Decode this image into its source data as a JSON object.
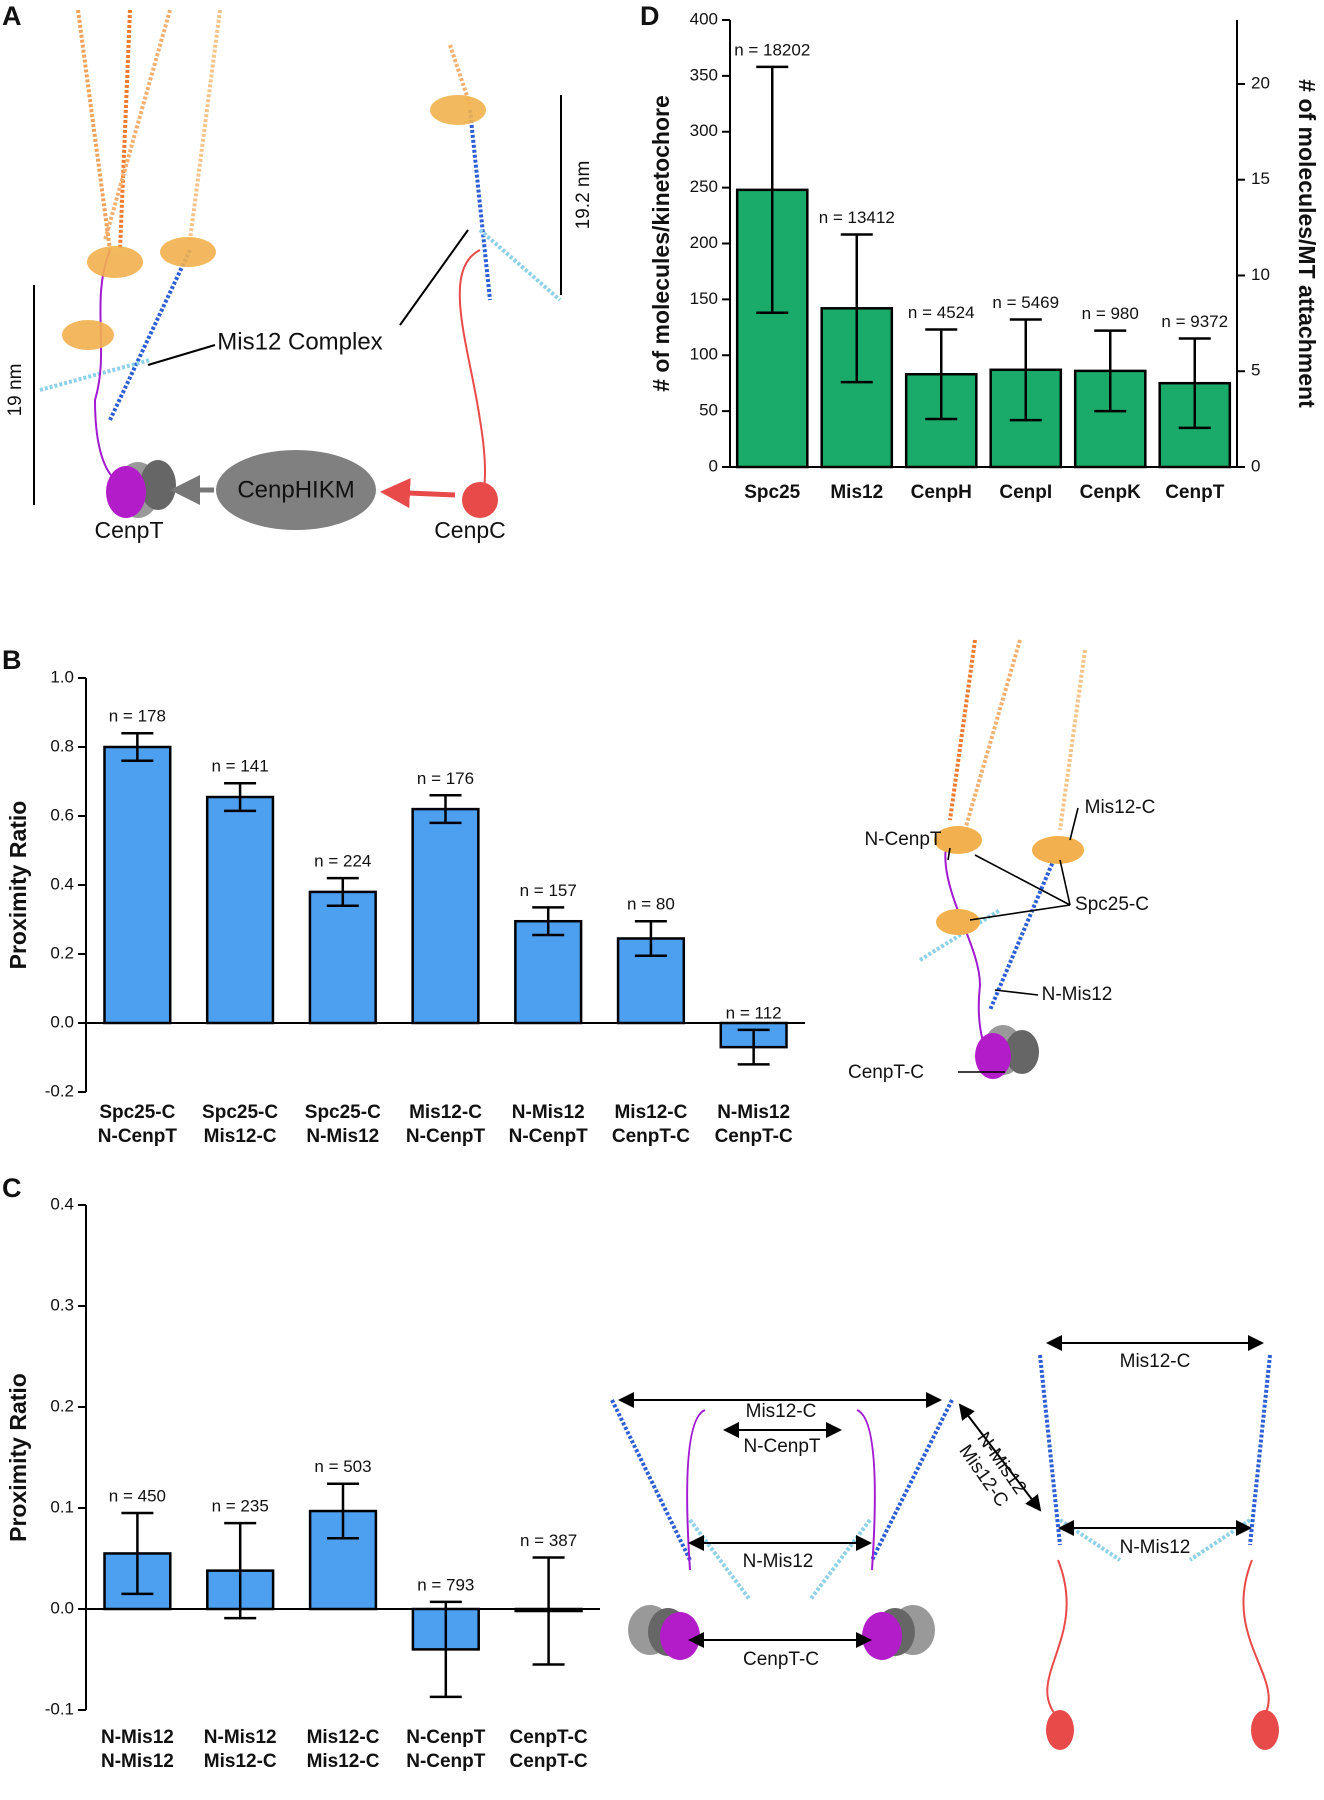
{
  "panel_labels": [
    "A",
    "B",
    "C",
    "D"
  ],
  "diagram_a": {
    "complex_label": "Mis12 Complex",
    "left_scale": "19 nm",
    "right_scale": "19.2 nm",
    "center": "CenpHIKM",
    "left_bottom": "CenpT",
    "right_bottom": "CenpC"
  },
  "diagram_b": {
    "labels": [
      "Mis12-C",
      "N-CenpT",
      "Spc25-C",
      "N-Mis12",
      "CenpT-C"
    ]
  },
  "diagram_c": {
    "left": [
      "Mis12-C",
      "N-CenpT",
      "N-Mis12",
      "CenpT-C"
    ],
    "right": [
      "Mis12-C",
      "N-Mis12"
    ],
    "between": [
      "N-Mis12",
      "Mis12-C"
    ]
  },
  "chart_data": [
    {
      "type": "bar",
      "y_label": "# of molecules/kinetochore",
      "y2_label": "# of molecules/MT attachment",
      "categories": [
        [
          "Spc25"
        ],
        [
          "Mis12"
        ],
        [
          "CenpH"
        ],
        [
          "CenpI"
        ],
        [
          "CenpK"
        ],
        [
          "CenpT"
        ]
      ],
      "values": [
        248,
        142,
        83,
        87,
        86,
        75
      ],
      "errors": [
        110,
        66,
        40,
        45,
        36,
        40
      ],
      "annotations": [
        "n = 18202",
        "n = 13412",
        "n = 4524",
        "n = 5469",
        "n = 980",
        "n = 9372"
      ],
      "color": "#1aab6a",
      "ylim": [
        0,
        400
      ],
      "yticks": [
        0,
        50,
        100,
        150,
        200,
        250,
        300,
        350,
        400
      ],
      "y2lim": [
        0,
        23.34
      ],
      "y2ticks": [
        0,
        5,
        10,
        15,
        20
      ]
    },
    {
      "type": "bar",
      "y_label": "Proximity Ratio",
      "categories": [
        [
          "Spc25-C",
          "N-CenpT"
        ],
        [
          "Spc25-C",
          "Mis12-C"
        ],
        [
          "Spc25-C",
          "N-Mis12"
        ],
        [
          "Mis12-C",
          "N-CenpT"
        ],
        [
          "N-Mis12",
          "N-CenpT"
        ],
        [
          "Mis12-C",
          "CenpT-C"
        ],
        [
          "N-Mis12",
          "CenpT-C"
        ]
      ],
      "values": [
        0.8,
        0.655,
        0.38,
        0.62,
        0.295,
        0.245,
        -0.07
      ],
      "errors": [
        0.04,
        0.04,
        0.04,
        0.04,
        0.04,
        0.05,
        0.05
      ],
      "annotations": [
        "n = 178",
        "n = 141",
        "n = 224",
        "n = 176",
        "n = 157",
        "n = 80",
        "n = 112"
      ],
      "color": "#4d9ff0",
      "ylim": [
        -0.2,
        1.0
      ],
      "yticks": [
        -0.2,
        {
          "value": 0,
          "label": "0.0"
        },
        0.2,
        0.4,
        0.6,
        0.8,
        {
          "value": 1,
          "label": "1.0"
        }
      ]
    },
    {
      "type": "bar",
      "y_label": "Proximity Ratio",
      "categories": [
        [
          "N-Mis12",
          "N-Mis12"
        ],
        [
          "N-Mis12",
          "Mis12-C"
        ],
        [
          "Mis12-C",
          "Mis12-C"
        ],
        [
          "N-CenpT",
          "N-CenpT"
        ],
        [
          "CenpT-C",
          "CenpT-C"
        ]
      ],
      "values": [
        0.055,
        0.038,
        0.097,
        -0.04,
        -0.002
      ],
      "errors": [
        0.04,
        0.047,
        0.027,
        0.047,
        0.053
      ],
      "annotations": [
        "n = 450",
        "n = 235",
        "n = 503",
        "n = 793",
        "n = 387"
      ],
      "color": "#4d9ff0",
      "ylim": [
        -0.1,
        0.4
      ],
      "yticks": [
        -0.1,
        {
          "value": 0,
          "label": "0.0"
        },
        0.1,
        0.2,
        0.3,
        0.4
      ]
    }
  ]
}
